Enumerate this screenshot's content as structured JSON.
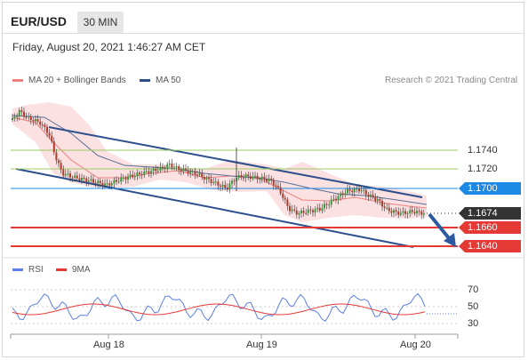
{
  "header": {
    "symbol": "EUR/USD",
    "timeframe": "30 MIN"
  },
  "datetime": "Friday, August 20, 2021 1:46:27 AM CET",
  "legend": {
    "items": [
      {
        "label": "MA 20 + Bollinger Bands",
        "color": "#f08080"
      },
      {
        "label": "MA 50",
        "color": "#2c4f8c"
      }
    ],
    "credit": "Research © 2021 Trading Central"
  },
  "price_levels": [
    {
      "label": "1.1740",
      "color": "#9ccc65"
    },
    {
      "label": "1.1720",
      "color": "#9ccc65"
    }
  ],
  "price_tags": [
    {
      "label": "1.1700",
      "color": "#1e88e5"
    },
    {
      "label": "1.1674",
      "color": "#333333"
    },
    {
      "label": "1.1660",
      "color": "#e53935"
    },
    {
      "label": "1.1640",
      "color": "#e53935"
    }
  ],
  "rsi_legend": {
    "items": [
      {
        "label": "RSI",
        "color": "#5c7ee6"
      },
      {
        "label": "9MA",
        "color": "#e53935"
      }
    ]
  },
  "rsi_levels": [
    "70",
    "50",
    "30"
  ],
  "x_labels": [
    "Aug 18",
    "Aug 19",
    "Aug 20"
  ]
}
